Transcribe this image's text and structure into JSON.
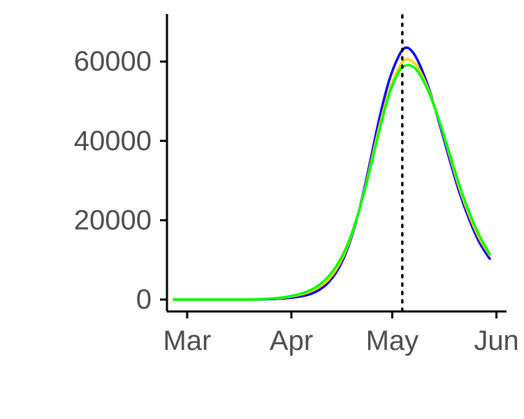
{
  "chart_data": {
    "type": "line",
    "x_type": "date",
    "title": "",
    "xlabel": "",
    "ylabel": "",
    "x_ticks": [
      {
        "date": "2020-03-01",
        "label": "Mar"
      },
      {
        "date": "2020-04-01",
        "label": "Apr"
      },
      {
        "date": "2020-05-01",
        "label": "May"
      },
      {
        "date": "2020-06-01",
        "label": "Jun"
      }
    ],
    "y_ticks": [
      0,
      20000,
      40000,
      60000
    ],
    "xlim": [
      "2020-02-24",
      "2020-06-04"
    ],
    "ylim": [
      -3000,
      72000
    ],
    "grid": false,
    "legend": "none",
    "vline": {
      "date": "2020-05-04",
      "style": "dotted",
      "color": "#000000"
    },
    "series": [
      {
        "color": "#0000ff",
        "x": [
          "2020-02-26",
          "2020-03-10",
          "2020-03-20",
          "2020-03-25",
          "2020-03-30",
          "2020-04-03",
          "2020-04-06",
          "2020-04-09",
          "2020-04-12",
          "2020-04-15",
          "2020-04-18",
          "2020-04-21",
          "2020-04-24",
          "2020-04-27",
          "2020-04-30",
          "2020-05-03",
          "2020-05-05",
          "2020-05-07",
          "2020-05-09",
          "2020-05-12",
          "2020-05-15",
          "2020-05-18",
          "2020-05-21",
          "2020-05-24",
          "2020-05-27",
          "2020-05-30"
        ],
        "values": [
          0,
          0,
          0,
          100,
          300,
          700,
          1200,
          2300,
          4300,
          7800,
          13500,
          22000,
          33000,
          45000,
          55000,
          61500,
          63500,
          62500,
          59500,
          53000,
          44500,
          35500,
          27000,
          20000,
          14300,
          10300
        ]
      },
      {
        "color": "#ffd700",
        "x": [
          "2020-02-26",
          "2020-03-10",
          "2020-03-20",
          "2020-03-25",
          "2020-03-30",
          "2020-04-03",
          "2020-04-06",
          "2020-04-09",
          "2020-04-12",
          "2020-04-15",
          "2020-04-18",
          "2020-04-21",
          "2020-04-24",
          "2020-04-27",
          "2020-04-30",
          "2020-05-03",
          "2020-05-05",
          "2020-05-07",
          "2020-05-09",
          "2020-05-12",
          "2020-05-15",
          "2020-05-18",
          "2020-05-21",
          "2020-05-24",
          "2020-05-27",
          "2020-05-30"
        ],
        "values": [
          0,
          0,
          0,
          200,
          500,
          1100,
          1800,
          3000,
          5000,
          8500,
          14000,
          22000,
          32000,
          43000,
          52500,
          58500,
          60500,
          60000,
          58000,
          52500,
          45000,
          36500,
          28000,
          21000,
          15300,
          11200
        ]
      },
      {
        "color": "#00ff00",
        "x": [
          "2020-02-26",
          "2020-03-10",
          "2020-03-20",
          "2020-03-25",
          "2020-03-30",
          "2020-04-03",
          "2020-04-06",
          "2020-04-09",
          "2020-04-12",
          "2020-04-15",
          "2020-04-18",
          "2020-04-21",
          "2020-04-24",
          "2020-04-27",
          "2020-04-30",
          "2020-05-03",
          "2020-05-05",
          "2020-05-07",
          "2020-05-09",
          "2020-05-12",
          "2020-05-15",
          "2020-05-18",
          "2020-05-21",
          "2020-05-24",
          "2020-05-27",
          "2020-05-30"
        ],
        "values": [
          0,
          0,
          0,
          200,
          600,
          1300,
          2100,
          3500,
          5800,
          9300,
          14500,
          22000,
          31500,
          42000,
          51500,
          57500,
          59000,
          58800,
          57000,
          52000,
          45000,
          37000,
          28800,
          21800,
          16000,
          11500
        ]
      }
    ]
  }
}
